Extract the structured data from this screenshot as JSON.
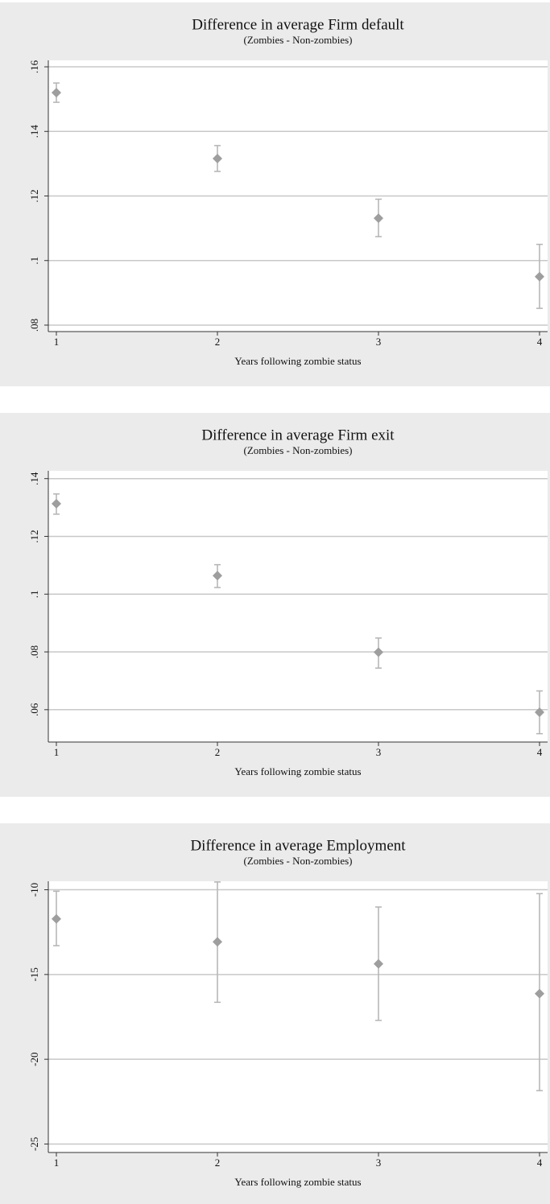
{
  "chart_data": [
    {
      "type": "errorbar",
      "title": "Difference in average Firm default",
      "subtitle": "(Zombies - Non-zombies)",
      "x_label": "Years following zombie status",
      "x": [
        1,
        2,
        3,
        4
      ],
      "values": [
        0.152,
        0.1316,
        0.1131,
        0.095
      ],
      "lower": [
        0.149,
        0.1276,
        0.1074,
        0.0852
      ],
      "upper": [
        0.155,
        0.1356,
        0.119,
        0.105
      ],
      "color": "#9e9e9e",
      "xlim": [
        0.95,
        4.05
      ],
      "xticks": [
        1,
        2,
        3,
        4
      ],
      "ylim": [
        0.078,
        0.162
      ],
      "yticks": [
        {
          "value": 0.08,
          "label": ".08"
        },
        {
          "value": 0.1,
          "label": ".1"
        },
        {
          "value": 0.12,
          "label": ".12"
        },
        {
          "value": 0.14,
          "label": ".14"
        },
        {
          "value": 0.16,
          "label": ".16"
        }
      ],
      "grid": true
    },
    {
      "type": "errorbar",
      "title": "Difference in average Firm exit",
      "subtitle": "(Zombies - Non-zombies)",
      "x_label": "Years following zombie status",
      "x": [
        1,
        2,
        3,
        4
      ],
      "values": [
        0.1313,
        0.1064,
        0.0799,
        0.0591
      ],
      "lower": [
        0.1277,
        0.1023,
        0.0744,
        0.0517
      ],
      "upper": [
        0.1347,
        0.1102,
        0.0848,
        0.0665
      ],
      "color": "#9e9e9e",
      "xlim": [
        0.95,
        4.05
      ],
      "xticks": [
        1,
        2,
        3,
        4
      ],
      "ylim": [
        0.0488,
        0.1427
      ],
      "yticks": [
        {
          "value": 0.06,
          "label": ".06"
        },
        {
          "value": 0.08,
          "label": ".08"
        },
        {
          "value": 0.1,
          "label": ".1"
        },
        {
          "value": 0.12,
          "label": ".12"
        },
        {
          "value": 0.14,
          "label": ".14"
        }
      ],
      "grid": true
    },
    {
      "type": "errorbar",
      "title": "Difference in average Employment",
      "subtitle": "(Zombies - Non-zombies)",
      "x_label": "Years following zombie status",
      "x": [
        1,
        2,
        3,
        4
      ],
      "values": [
        -11.72,
        -13.07,
        -14.37,
        -16.13
      ],
      "lower": [
        -13.3,
        -16.64,
        -17.71,
        -21.85
      ],
      "upper": [
        -10.09,
        -9.54,
        -11.02,
        -10.23
      ],
      "color": "#9e9e9e",
      "xlim": [
        0.95,
        4.05
      ],
      "xticks": [
        1,
        2,
        3,
        4
      ],
      "ylim": [
        -25.5,
        -9.5
      ],
      "yticks": [
        -25,
        -20,
        -15,
        -10
      ],
      "grid": true
    }
  ]
}
